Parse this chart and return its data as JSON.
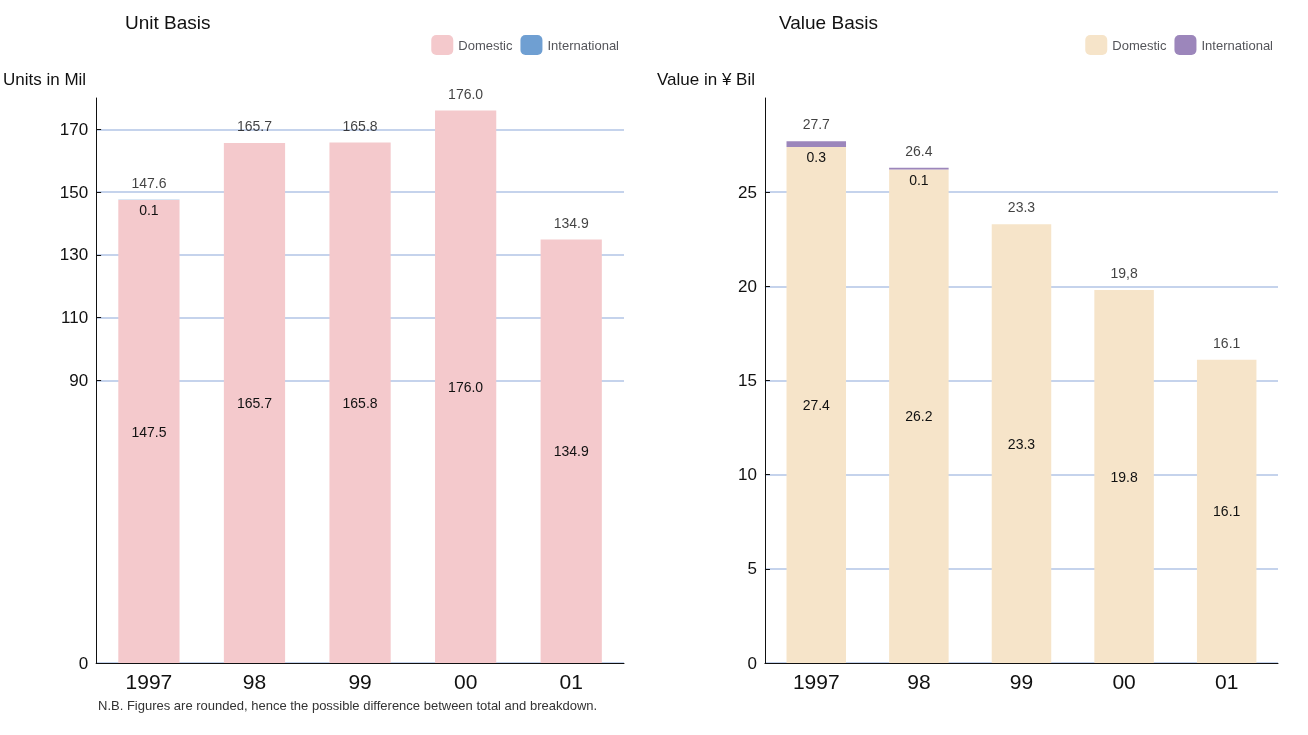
{
  "chart_data": [
    {
      "type": "bar",
      "title": "Unit Basis",
      "ylabel": "Units in Mil",
      "categories": [
        "1997",
        "98",
        "99",
        "00",
        "01"
      ],
      "stacked": true,
      "series": [
        {
          "name": "Domestic",
          "color": "#f4c9cc",
          "values": [
            147.5,
            165.7,
            165.8,
            176.0,
            134.9
          ],
          "value_labels": [
            "147.5",
            "165.7",
            "165.8",
            "176.0",
            "134.9"
          ]
        },
        {
          "name": "International",
          "color": "#6f9fd2",
          "values": [
            0.1,
            null,
            null,
            null,
            null
          ],
          "value_labels": [
            "0.1",
            null,
            null,
            null,
            null
          ]
        }
      ],
      "totals": [
        "147.6",
        "165.7",
        "165.8",
        "176.0",
        "134.9"
      ],
      "ylim": [
        0,
        180
      ],
      "yticks": [
        0,
        90,
        110,
        130,
        150,
        170
      ],
      "grid": "y",
      "legend": "top right",
      "annotations": [
        "N.B. Figures are rounded, hence the possible difference between total and breakdown."
      ]
    },
    {
      "type": "bar",
      "title": "Value Basis",
      "ylabel": "Value in ¥ Bil",
      "categories": [
        "1997",
        "98",
        "99",
        "00",
        "01"
      ],
      "stacked": true,
      "series": [
        {
          "name": "Domestic",
          "color": "#f6e4c9",
          "values": [
            27.4,
            26.2,
            23.3,
            19.8,
            16.1
          ],
          "value_labels": [
            "27.4",
            "26.2",
            "23.3",
            "19.8",
            "16.1"
          ]
        },
        {
          "name": "International",
          "color": "#9c86bb",
          "values": [
            0.3,
            0.1,
            null,
            null,
            null
          ],
          "value_labels": [
            "0.3",
            "0.1",
            null,
            null,
            null
          ]
        }
      ],
      "totals": [
        "27.7",
        "26.4",
        "23.3",
        "19,8",
        "16.1"
      ],
      "ylim": [
        0,
        30
      ],
      "yticks": [
        0,
        5,
        10,
        15,
        20,
        25
      ],
      "grid": "y",
      "legend": "top right"
    }
  ]
}
